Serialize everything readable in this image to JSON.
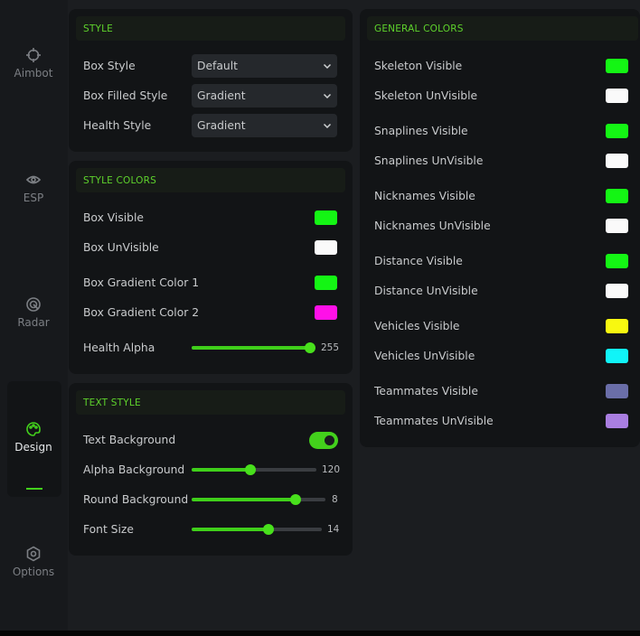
{
  "sidebar": {
    "items": [
      {
        "label": "Aimbot"
      },
      {
        "label": "ESP"
      },
      {
        "label": "Radar"
      },
      {
        "label": "Design",
        "active": true
      },
      {
        "label": "Options"
      }
    ]
  },
  "style": {
    "title": "STYLE",
    "rows": [
      {
        "label": "Box Style",
        "value": "Default"
      },
      {
        "label": "Box Filled Style",
        "value": "Gradient"
      },
      {
        "label": "Health Style",
        "value": "Gradient"
      }
    ]
  },
  "style_colors": {
    "title": "STYLE COLORS",
    "rows": [
      {
        "label": "Box Visible",
        "color": "#14f514"
      },
      {
        "label": "Box UnVisible",
        "color": "#fafafa"
      },
      {
        "label": "Box Gradient Color 1",
        "color": "#14f514"
      },
      {
        "label": "Box Gradient Color 2",
        "color": "#ff10e8"
      }
    ],
    "slider": {
      "label": "Health Alpha",
      "value": 255
    }
  },
  "text_style": {
    "title": "TEXT STYLE",
    "toggle": {
      "label": "Text Background",
      "on": true
    },
    "sliders": [
      {
        "label": "Alpha Background",
        "value": 120
      },
      {
        "label": "Round Background",
        "value": 8
      },
      {
        "label": "Font Size",
        "value": 14
      }
    ]
  },
  "general_colors": {
    "title": "GENERAL COLORS",
    "rows": [
      {
        "label": "Skeleton Visible",
        "color": "#14f514"
      },
      {
        "label": "Skeleton UnVisible",
        "color": "#fafafa"
      },
      {
        "label": "Snaplines Visible",
        "color": "#14f514"
      },
      {
        "label": "Snaplines UnVisible",
        "color": "#fafafa"
      },
      {
        "label": "Nicknames Visible",
        "color": "#14f514"
      },
      {
        "label": "Nicknames UnVisible",
        "color": "#fafafa"
      },
      {
        "label": "Distance Visible",
        "color": "#14f514"
      },
      {
        "label": "Distance UnVisible",
        "color": "#fafafa"
      },
      {
        "label": "Vehicles Visible",
        "color": "#f8f810"
      },
      {
        "label": "Vehicles UnVisible",
        "color": "#10f4f8"
      },
      {
        "label": "Teammates Visible",
        "color": "#6a6ea8"
      },
      {
        "label": "Teammates UnVisible",
        "color": "#a97ee0"
      }
    ]
  }
}
